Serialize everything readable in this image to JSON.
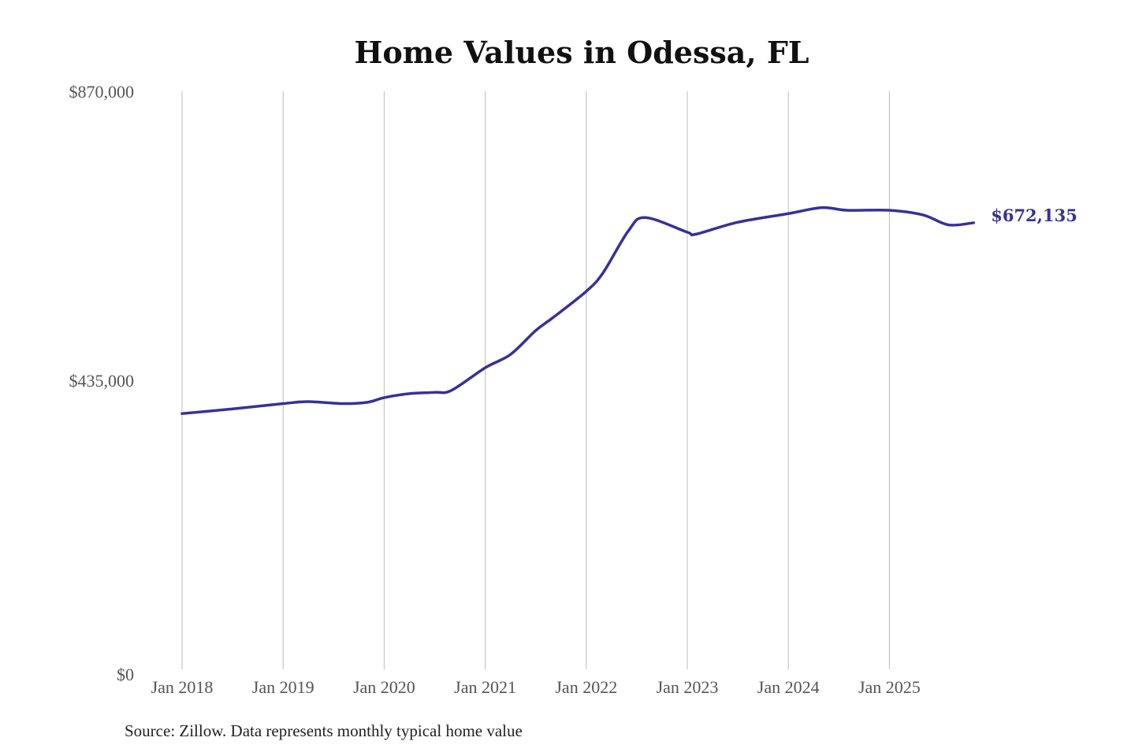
{
  "chart_data": {
    "type": "line",
    "title": "Home Values in Odessa, FL",
    "source": "Source: Zillow. Data represents monthly typical home value",
    "xlabel": "",
    "ylabel": "",
    "ylim": [
      0,
      870000
    ],
    "y_ticks": [
      0,
      435000,
      870000
    ],
    "y_tick_labels": [
      "$0",
      "$435,000",
      "$870,000"
    ],
    "x_ticks": [
      "2018-01",
      "2019-01",
      "2020-01",
      "2021-01",
      "2022-01",
      "2023-01",
      "2024-01",
      "2025-01"
    ],
    "x_tick_labels": [
      "Jan 2018",
      "Jan 2019",
      "Jan 2020",
      "Jan 2021",
      "Jan 2022",
      "Jan 2023",
      "Jan 2024",
      "Jan 2025"
    ],
    "grid": "vertical",
    "line_color": "#35319a",
    "end_label": "$672,135",
    "series": [
      {
        "x": [
          "2018-01",
          "2018-07",
          "2019-01",
          "2019-04",
          "2019-08",
          "2019-11",
          "2020-01",
          "2020-04",
          "2020-07",
          "2020-09",
          "2021-01",
          "2021-04",
          "2021-07",
          "2021-09",
          "2022-01",
          "2022-03",
          "2022-06",
          "2022-08",
          "2023-01",
          "2023-02",
          "2023-07",
          "2024-01",
          "2024-05",
          "2024-08",
          "2025-01",
          "2025-05",
          "2025-08",
          "2025-11"
        ],
        "values": [
          385000,
          392000,
          400000,
          403000,
          400000,
          402000,
          409000,
          415000,
          417000,
          420000,
          454000,
          474000,
          510000,
          529000,
          569000,
          597000,
          660000,
          680000,
          658000,
          655000,
          673000,
          686000,
          695000,
          691000,
          691000,
          684000,
          669000,
          672135
        ]
      }
    ]
  }
}
